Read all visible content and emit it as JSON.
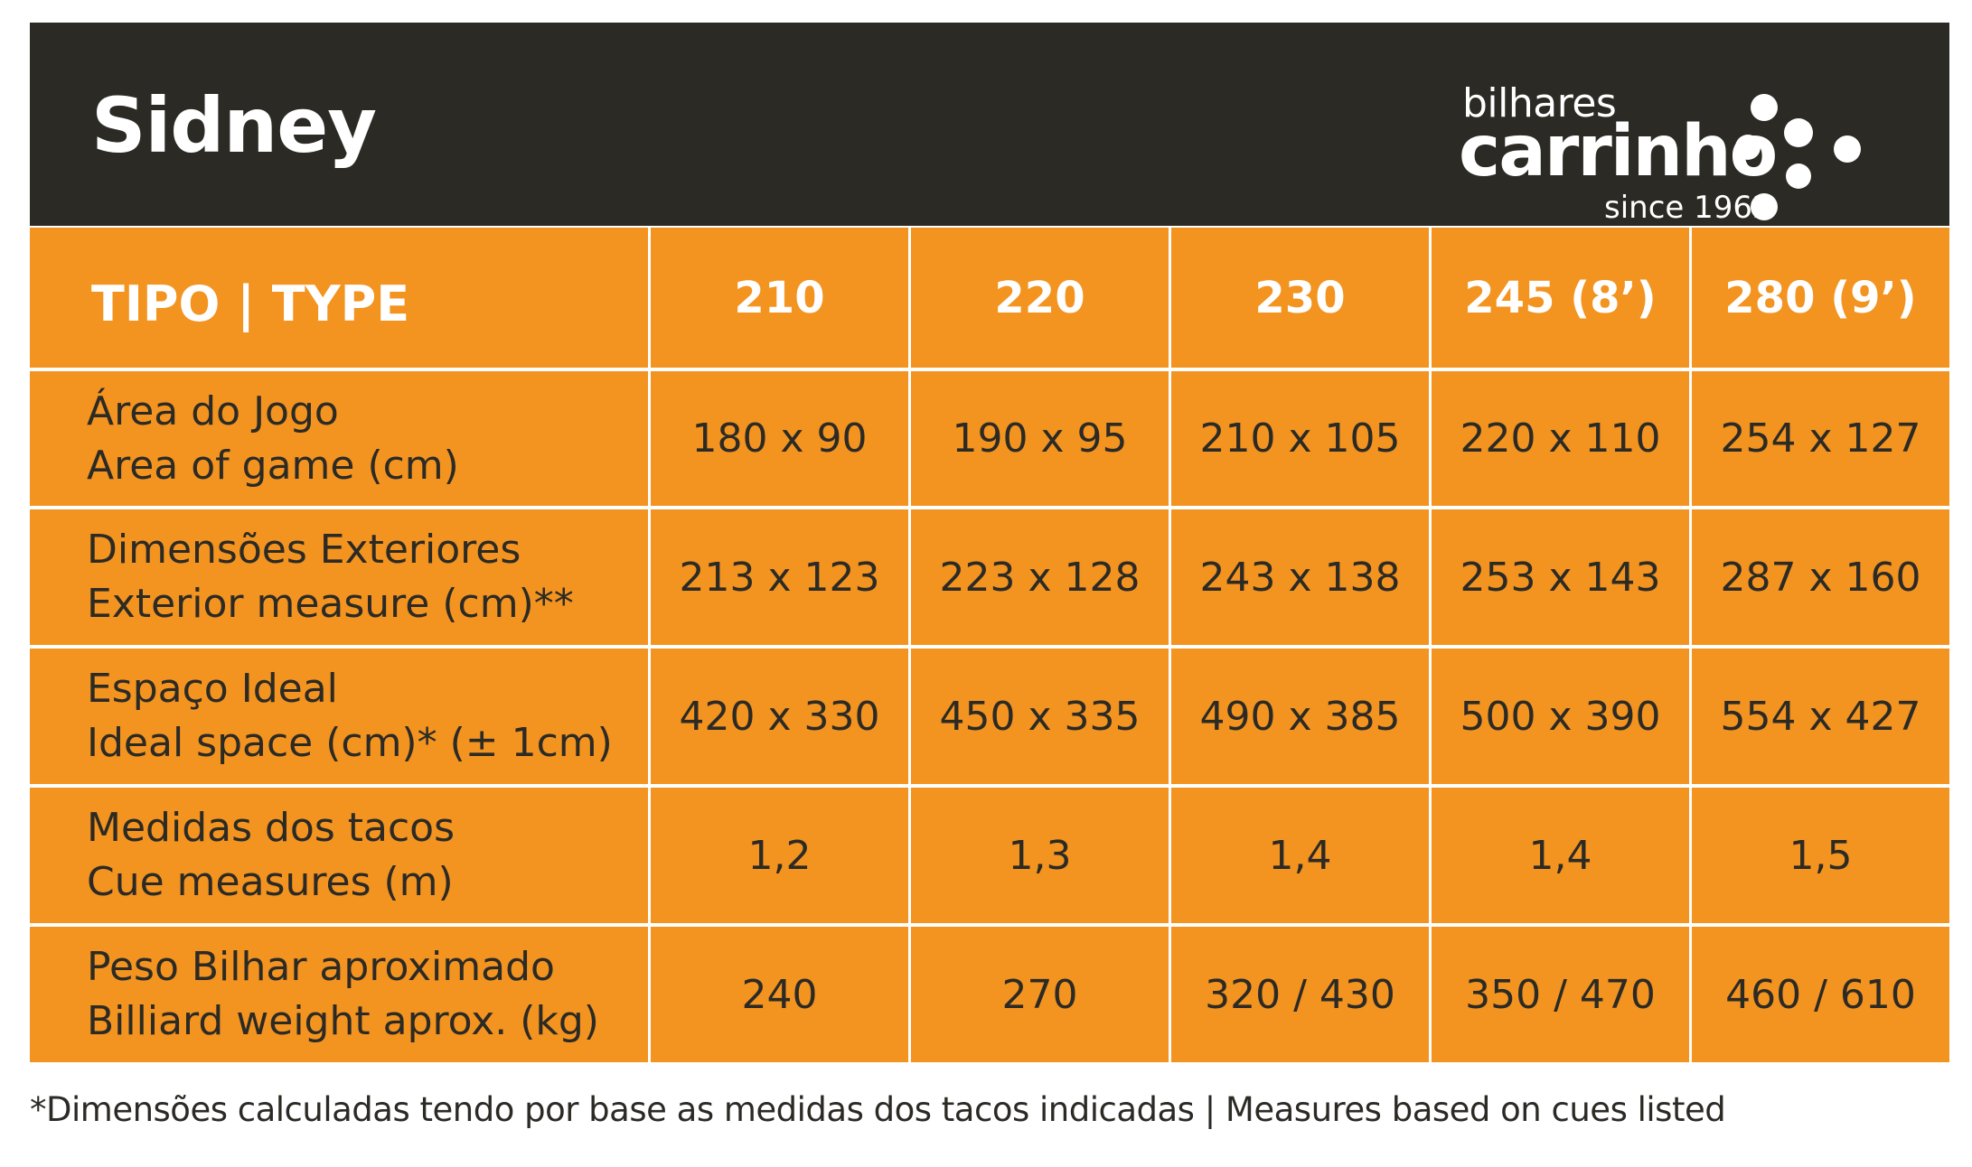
{
  "header": {
    "title": "Sidney",
    "logo": {
      "top": "bilhares",
      "main": "carrinho",
      "since": "since 1962"
    }
  },
  "table": {
    "columns": [
      "TIPO | TYPE",
      "210",
      "220",
      "230",
      "245 (8’)",
      "280 (9’)"
    ],
    "rows": [
      {
        "label_pt": "Área do Jogo",
        "label_en": "Area of game (cm)",
        "values": [
          "180 x 90",
          "190 x 95",
          "210 x 105",
          "220 x 110",
          "254 x 127"
        ]
      },
      {
        "label_pt": "Dimensões Exteriores",
        "label_en": "Exterior measure (cm)**",
        "values": [
          "213 x 123",
          "223 x 128",
          "243 x 138",
          "253 x 143",
          "287 x 160"
        ]
      },
      {
        "label_pt": "Espaço Ideal",
        "label_en": "Ideal space (cm)* (± 1cm)",
        "values": [
          "420 x 330",
          "450 x 335",
          "490 x 385",
          "500 x 390",
          "554 x 427"
        ]
      },
      {
        "label_pt": "Medidas dos tacos",
        "label_en": "Cue measures (m)",
        "values": [
          "1,2",
          "1,3",
          "1,4",
          "1,4",
          "1,5"
        ]
      },
      {
        "label_pt": "Peso Bilhar aproximado",
        "label_en": "Billiard weight aprox. (kg)",
        "values": [
          "240",
          "270",
          "320 / 430",
          "350 / 470",
          "460 / 610"
        ]
      }
    ]
  },
  "footnote": "*Dimensões calculadas tendo por base as medidas dos tacos indicadas | Measures based on cues listed",
  "colors": {
    "header_bg": "#2b2a25",
    "cell_bg": "#f39320",
    "text_dark": "#2b2a25",
    "text_light": "#ffffff"
  }
}
